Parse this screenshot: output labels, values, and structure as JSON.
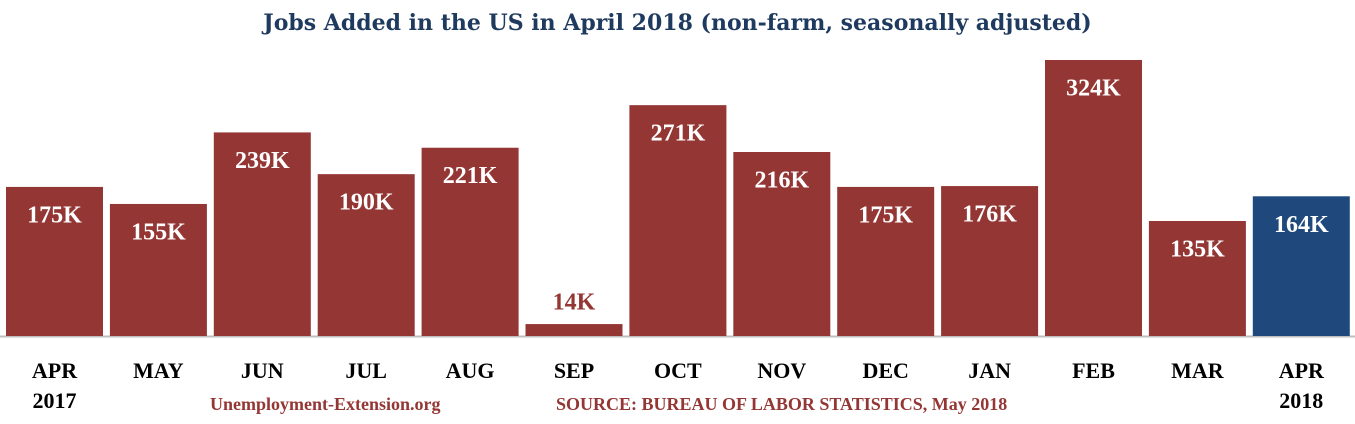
{
  "chart_data": {
    "type": "bar",
    "title": "Jobs Added in the US in April 2018 (non-farm, seasonally adjusted)",
    "categories": [
      "APR 2017",
      "MAY",
      "JUN",
      "JUL",
      "AUG",
      "SEP",
      "OCT",
      "NOV",
      "DEC",
      "JAN",
      "FEB",
      "MAR",
      "APR 2018"
    ],
    "values": [
      175,
      155,
      239,
      190,
      221,
      14,
      271,
      216,
      175,
      176,
      324,
      135,
      164
    ],
    "value_labels": [
      "175K",
      "155K",
      "239K",
      "190K",
      "221K",
      "14K",
      "271K",
      "216K",
      "175K",
      "176K",
      "324K",
      "135K",
      "164K"
    ],
    "colors": [
      "#943634",
      "#943634",
      "#943634",
      "#943634",
      "#943634",
      "#943634",
      "#943634",
      "#943634",
      "#943634",
      "#943634",
      "#943634",
      "#943634",
      "#1f497d"
    ],
    "site": "Unemployment-Extension.org",
    "source": "SOURCE: BUREAU OF LABOR STATISTICS, May 2018"
  }
}
